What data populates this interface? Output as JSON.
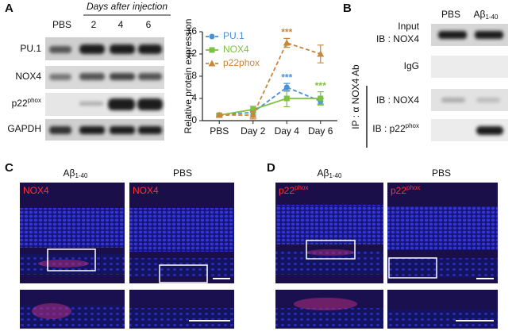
{
  "panels": {
    "a": "A",
    "b": "B",
    "c": "C",
    "d": "D"
  },
  "panel_a": {
    "header": "Days after injection",
    "columns": [
      "PBS",
      "2",
      "4",
      "6"
    ],
    "rows": [
      {
        "base": "PU.1",
        "sup": ""
      },
      {
        "base": "NOX4",
        "sup": ""
      },
      {
        "base": "p22",
        "sup": "phox"
      },
      {
        "base": "GAPDH",
        "sup": ""
      }
    ]
  },
  "chart_data": {
    "type": "line",
    "y_label": "Relative protein expression",
    "categories": [
      "PBS",
      "Day 2",
      "Day 4",
      "Day 6"
    ],
    "series": [
      {
        "name": "PU.1",
        "color": "#4a8fd8",
        "marker": "circle",
        "dashed": true,
        "values": [
          1,
          1.5,
          6,
          3.5
        ],
        "errors": [
          0.2,
          0.5,
          0.7,
          0.5
        ],
        "significance": [
          null,
          null,
          "***",
          null
        ]
      },
      {
        "name": "NOX4",
        "color": "#7dc142",
        "marker": "square",
        "dashed": false,
        "values": [
          1,
          2,
          4,
          4
        ],
        "errors": [
          0.2,
          0.6,
          1.5,
          1.2
        ],
        "significance": [
          null,
          null,
          null,
          "***"
        ]
      },
      {
        "name": "p22phox",
        "color": "#c8873a",
        "marker": "triangle",
        "dashed": true,
        "values": [
          1,
          1,
          14,
          12
        ],
        "errors": [
          0.2,
          0.7,
          0.8,
          1.6
        ],
        "significance": [
          null,
          null,
          "***",
          null
        ]
      }
    ],
    "ylim": [
      0,
      16
    ],
    "yticks": [
      0,
      4,
      8,
      12,
      16
    ],
    "legend": "upper left"
  },
  "panel_b": {
    "columns": [
      {
        "base": "PBS",
        "sub": ""
      },
      {
        "base": "Aβ",
        "sub": "1-40"
      }
    ],
    "input_label": "Input",
    "rows": [
      {
        "base": "IB : NOX4",
        "sup": ""
      },
      {
        "base": "IgG",
        "sup": ""
      },
      {
        "base": "IB : NOX4",
        "sup": ""
      },
      {
        "base": "IB : p22",
        "sup": "phox"
      }
    ],
    "ip_label": "IP : α NOX4 Ab"
  },
  "panel_c": {
    "columns": [
      {
        "base": "Aβ",
        "sub": "1-40"
      },
      {
        "base": "PBS",
        "sub": ""
      }
    ],
    "stain": [
      {
        "base": "NOX4",
        "sup": ""
      },
      {
        "base": "NOX4",
        "sup": ""
      }
    ]
  },
  "panel_d": {
    "columns": [
      {
        "base": "Aβ",
        "sub": "1-40"
      },
      {
        "base": "PBS",
        "sub": ""
      }
    ],
    "stain": [
      {
        "base": "p22",
        "sup": "phox"
      },
      {
        "base": "p22",
        "sup": "phox"
      }
    ]
  }
}
